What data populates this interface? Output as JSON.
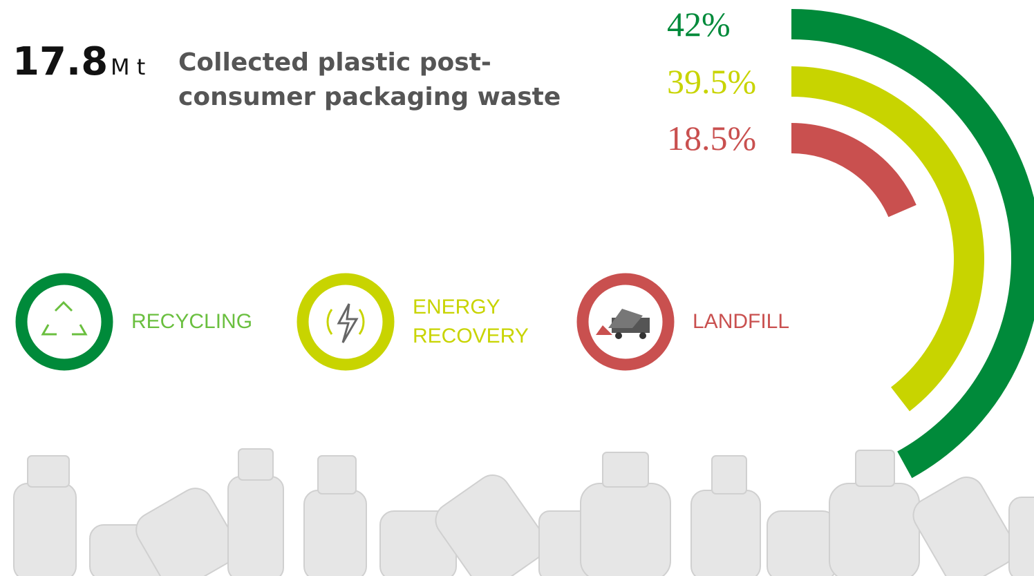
{
  "chart_data": {
    "type": "radial-bar",
    "total": 17.8,
    "unit": "M t",
    "title": "Collected plastic post-consumer packaging waste",
    "categories": [
      "RECYCLING",
      "ENERGY RECOVERY",
      "LANDFILL"
    ],
    "values": [
      42,
      39.5,
      18.5
    ],
    "value_labels": [
      "42%",
      "39.5%",
      "18.5%"
    ],
    "colors": [
      "#008a3a",
      "#c8d400",
      "#c9504f"
    ],
    "anglelim": [
      0,
      100
    ]
  }
}
